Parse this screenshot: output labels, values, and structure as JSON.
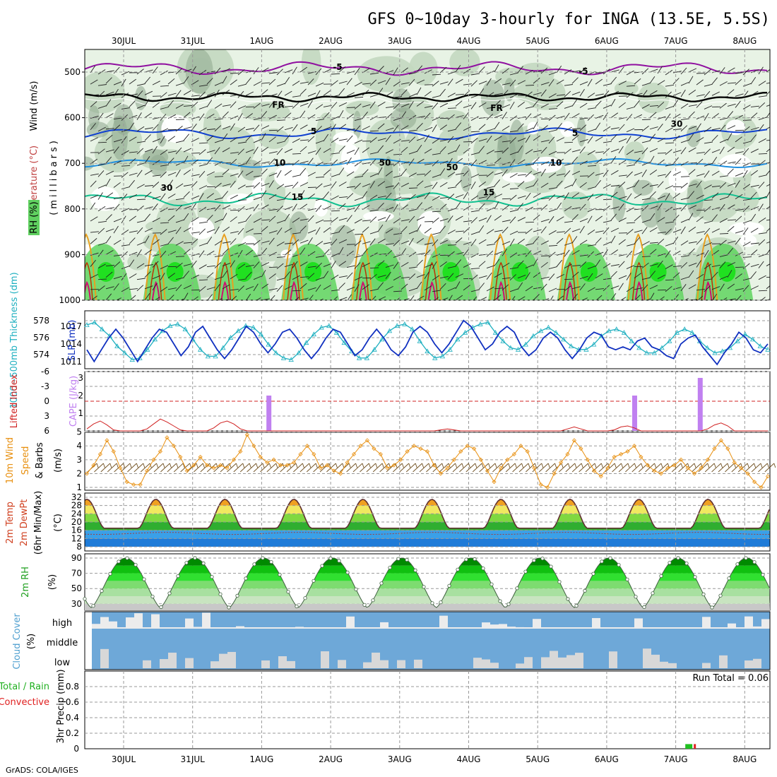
{
  "title": "GFS 0~10day 3-hourly for INGA (13.5E, 5.5S)",
  "footer": "GrADS: COLA/IGES",
  "dates": [
    "30JUL",
    "31JUL",
    "1AUG",
    "2AUG",
    "3AUG",
    "4AUG",
    "5AUG",
    "6AUG",
    "7AUG",
    "8AUG"
  ],
  "colors": {
    "rh_light": "#e8f3e5",
    "rh_mid": "#c3d8c0",
    "rh_dark": "#93ab93",
    "rh_green": "#5fd35f",
    "rh_bright": "#20e020",
    "wind": "#222222",
    "temp_purple": "#9010a0",
    "temp_freeze": "#000000",
    "temp_blue": "#1040d0",
    "temp_lightblue": "#2090e0",
    "temp_teal": "#10c090",
    "temp_orange": "#e8a020",
    "temp_red": "#c03000",
    "temp_magenta": "#d01070",
    "thick": "#20b0c0",
    "slp": "#1030c0",
    "li": "#d02020",
    "cape": "#c080f0",
    "wind10": "#e89010",
    "barb": "#705020",
    "cloud_bg": "#6ea8d8",
    "cloud_fill": "#ececec",
    "precip_green": "#20c020",
    "precip_red": "#e02020"
  },
  "panels": {
    "upper": {
      "labels": {
        "wind": "Wind (m/s)",
        "temp": "Temperature (°C)",
        "rh": "RH (%)",
        "ylabel": "(millibars)"
      },
      "yticks": [
        "500",
        "600",
        "700",
        "800",
        "900",
        "1000"
      ],
      "contour_labels": [
        "-5",
        "FR",
        "5",
        "10",
        "15",
        "30",
        "50"
      ]
    },
    "thick_slp": {
      "labels": {
        "thick": "1000~500mb Thickness (dm)",
        "slp": "SLP (mb)"
      },
      "yticks_left": [
        "578",
        "576",
        "574"
      ],
      "yticks_right": [
        "1017",
        "1014",
        "1011"
      ]
    },
    "li_cape": {
      "labels": {
        "li": "Lifted Index",
        "cape": "CAPE (J/kg)"
      },
      "yticks_left": [
        "-6",
        "-3",
        "0",
        "3",
        "6"
      ],
      "yticks_right": [
        "3",
        "2",
        "1"
      ]
    },
    "wind10": {
      "labels": {
        "l1": "10m Wind",
        "l2": "Speed",
        "l3": "& Barbs",
        "unit": "(m/s)"
      },
      "yticks": [
        "5",
        "4",
        "3",
        "2",
        "1"
      ]
    },
    "temp2m": {
      "labels": {
        "l1": "2m Temp",
        "l2": "2m DewPt",
        "l3": "(6hr Min/Max)",
        "unit": "(°C)"
      },
      "yticks": [
        "32",
        "28",
        "24",
        "20",
        "16",
        "12",
        "8"
      ]
    },
    "rh2m": {
      "labels": {
        "l1": "2m RH",
        "unit": "(%)"
      },
      "yticks": [
        "90",
        "70",
        "50",
        "30"
      ]
    },
    "cloud": {
      "labels": {
        "l1": "Cloud Cover",
        "unit": "(%)"
      },
      "levels": [
        "high",
        "middle",
        "low"
      ]
    },
    "precip": {
      "labels": {
        "l1": "Total / Rain",
        "l2": "Convective",
        "l3": "3hr Precip (mm)"
      },
      "yticks": [
        "0.8",
        "0.6",
        "0.4",
        "0.2",
        "0"
      ],
      "run_total": "Run Total = 0.06"
    }
  },
  "chart_data": {
    "type": "line",
    "x_dates": [
      "30JUL",
      "31JUL",
      "1AUG",
      "2AUG",
      "3AUG",
      "4AUG",
      "5AUG",
      "6AUG",
      "7AUG",
      "8AUG"
    ],
    "thickness_dm": [
      577.5,
      577.8,
      577.0,
      576.2,
      575.0,
      574.2,
      573.4,
      573.6,
      574.6,
      575.8,
      576.8,
      577.4,
      577.6,
      577.0,
      575.8,
      574.6,
      573.8,
      573.8,
      574.8,
      576.0,
      576.8,
      577.4,
      577.2,
      576.4,
      575.2,
      574.2,
      573.6,
      573.4,
      574.2,
      575.4,
      576.4,
      577.2,
      577.4,
      576.6,
      575.4,
      574.4,
      573.6,
      573.6,
      574.6,
      575.8,
      576.8,
      577.4,
      577.6,
      577.0,
      575.6,
      574.4,
      573.6,
      573.8,
      574.6,
      575.8,
      576.6,
      577.2,
      577.6,
      577.8,
      576.6,
      575.6,
      574.8,
      574.6,
      575.2,
      576.2,
      576.8,
      577.2,
      576.6,
      575.8,
      575.0,
      574.6,
      574.6,
      575.2,
      576.2,
      576.8,
      577.0,
      576.6,
      575.6,
      574.8,
      574.2,
      574.2,
      574.8,
      575.6,
      576.6,
      577.0,
      576.6,
      575.6,
      574.8,
      574.2,
      574.4,
      574.8,
      575.6,
      576.4,
      575.8,
      575.0,
      574.6
    ],
    "slp_mb": [
      1013,
      1011,
      1013,
      1015,
      1016.5,
      1015,
      1013,
      1011,
      1013,
      1015,
      1016.5,
      1016,
      1014,
      1012,
      1013.5,
      1016,
      1017,
      1015,
      1013,
      1011.5,
      1013,
      1015,
      1017,
      1016,
      1014,
      1012.5,
      1014,
      1016,
      1016.5,
      1015,
      1013,
      1011.5,
      1013,
      1015,
      1016.5,
      1016,
      1014,
      1012,
      1013,
      1015,
      1016.5,
      1015,
      1013,
      1012,
      1013.5,
      1016,
      1017,
      1016,
      1014,
      1012.5,
      1014,
      1016,
      1018,
      1017,
      1015,
      1013,
      1014,
      1016,
      1017,
      1016,
      1013.5,
      1012,
      1013,
      1015,
      1016,
      1015,
      1013,
      1011.5,
      1013,
      1015,
      1016,
      1015.5,
      1013.5,
      1013,
      1013.5,
      1013,
      1014.5,
      1015,
      1013.5,
      1013,
      1012,
      1011.5,
      1014,
      1015,
      1015.5,
      1013.5,
      1012,
      1010.5,
      1012.5,
      1014,
      1016,
      1015,
      1013,
      1012.5,
      1014
    ],
    "li_curve": [
      5.6,
      4.6,
      4.0,
      4.8,
      5.8,
      6,
      6,
      6,
      6,
      5.6,
      4.6,
      3.6,
      4.2,
      5.0,
      5.8,
      6,
      6,
      6,
      6,
      5.4,
      4.4,
      4.0,
      4.6,
      5.6,
      6,
      6,
      6,
      6,
      6,
      6,
      6,
      6,
      6,
      6,
      6,
      6,
      6,
      6,
      6,
      6,
      6,
      6,
      6,
      6,
      6,
      6,
      6,
      6,
      6,
      6,
      6,
      6,
      6,
      5.8,
      5.6,
      5.8,
      6,
      6,
      6,
      6,
      6,
      6,
      6,
      6,
      6,
      6,
      6,
      6,
      6,
      6,
      6,
      6,
      5.6,
      5.2,
      5.6,
      6,
      6,
      6,
      6,
      5.8,
      5.2,
      5.0,
      5.4,
      6,
      6,
      6,
      6,
      6,
      6,
      6,
      6,
      6,
      6,
      5.6,
      4.8,
      4.4,
      5.0,
      6,
      6,
      6,
      6,
      6,
      6
    ],
    "cape_bars": [
      {
        "date_index": 2.1,
        "value": 2
      },
      {
        "date_index": 7.4,
        "value": 2
      },
      {
        "date_index": 8.35,
        "value": 3
      }
    ],
    "wind10_speed": [
      2.0,
      2.6,
      3.4,
      4.4,
      3.6,
      2.4,
      1.4,
      1.2,
      1.2,
      2.2,
      3.0,
      3.6,
      4.6,
      4.0,
      3.2,
      2.2,
      2.6,
      3.2,
      2.6,
      2.4,
      2.6,
      2.4,
      3.0,
      3.6,
      4.8,
      4.0,
      3.2,
      2.8,
      3.0,
      2.6,
      2.6,
      2.8,
      3.4,
      4.0,
      3.4,
      2.4,
      2.6,
      2.2,
      2.0,
      2.8,
      3.4,
      4.0,
      4.4,
      3.8,
      3.4,
      2.4,
      2.6,
      3.0,
      3.6,
      4.0,
      3.8,
      3.6,
      2.6,
      2.0,
      2.4,
      3.0,
      3.6,
      4.0,
      3.8,
      3.0,
      2.2,
      1.4,
      2.4,
      3.0,
      3.4,
      4.0,
      3.6,
      2.4,
      1.2,
      1.0,
      2.0,
      2.8,
      3.4,
      4.4,
      3.8,
      3.0,
      2.2,
      1.8,
      2.4,
      3.2,
      3.4,
      3.6,
      4.0,
      3.2,
      2.6,
      2.2,
      2.0,
      2.4,
      2.6,
      3.0,
      2.4,
      2.0,
      2.4,
      3.0,
      3.8,
      4.4,
      3.8,
      2.8,
      2.4,
      2.0,
      1.4,
      1.0,
      1.8
    ],
    "temp2m_cycle": {
      "min_c": 17,
      "max_c": 31,
      "dewpoint_c": [
        14,
        15
      ]
    },
    "rh2m_cycle": {
      "min_pct": 25,
      "max_pct": 90
    },
    "precip_mm": [
      {
        "date_index": 8.18,
        "total": 0.06,
        "convective": 0.02
      }
    ]
  }
}
